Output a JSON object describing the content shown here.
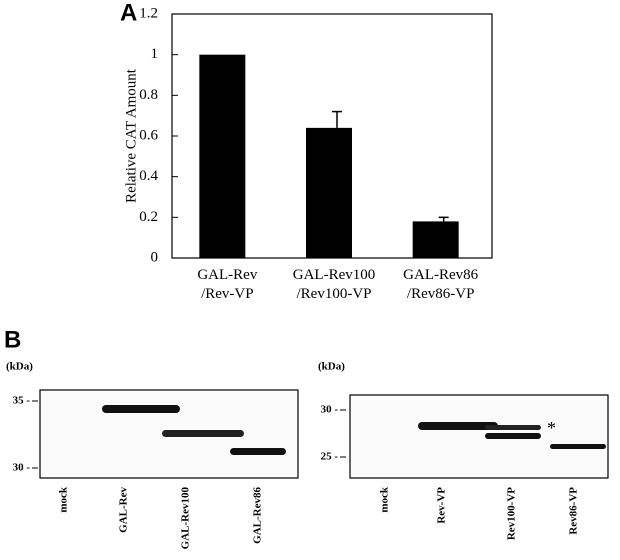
{
  "chart_data": {
    "type": "bar",
    "panel_label": "A",
    "y_label": "Relative CAT Amount",
    "categories": [
      "GAL-Rev\n/Rev-VP",
      "GAL-Rev100\n/Rev100-VP",
      "GAL-Rev86\n/Rev86-VP"
    ],
    "values": [
      1,
      0.64,
      0.18
    ],
    "errors": [
      null,
      0.08,
      0.02
    ],
    "color": "#000000",
    "ylim": [
      0,
      1.2
    ],
    "yticks": [
      0,
      0.2,
      0.4,
      0.6,
      0.8,
      1,
      1.2
    ]
  },
  "panel_b": {
    "label": "B",
    "asterisk": "*",
    "blots": [
      {
        "unit": "(kDa)",
        "markers": [
          "35 -",
          "30 -"
        ],
        "lanes": [
          "mock",
          "GAL-Rev",
          "GAL-Rev100",
          "GAL-Rev86"
        ]
      },
      {
        "unit": "(kDa)",
        "markers": [
          "30 -",
          "25 -"
        ],
        "lanes": [
          "mock",
          "Rev-VP",
          "Rev100-VP",
          "Rev86-VP"
        ]
      }
    ]
  }
}
